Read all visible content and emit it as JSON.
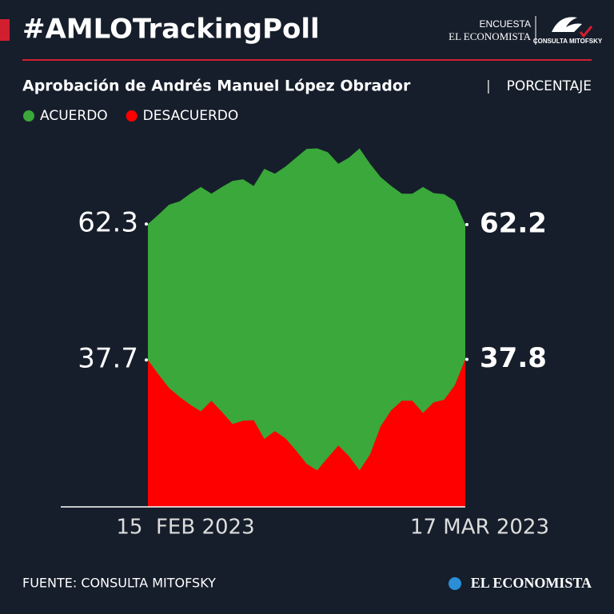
{
  "header": {
    "title": "#AMLOTrackingPoll",
    "brand_top": "ENCUESTA",
    "brand_name": "EL ECONOMISTA",
    "partner": "CONSULTA MITOFSKY"
  },
  "footer": {
    "source": "FUENTE: CONSULTA MITOFSKY",
    "logo": "EL ECONOMISTA"
  },
  "chart_data": {
    "type": "area",
    "title": "Aprobación de Andrés Manuel López Obrador",
    "unit": "PORCENTAJE",
    "categories": [
      "15  FEB 2023",
      null,
      null,
      null,
      null,
      null,
      null,
      null,
      null,
      null,
      null,
      null,
      null,
      null,
      null,
      null,
      null,
      null,
      null,
      null,
      null,
      null,
      null,
      null,
      null,
      null,
      null,
      null,
      null,
      null,
      "17 MAR 2023"
    ],
    "series": [
      {
        "name": "ACUERDO",
        "color": "#3aa83a",
        "values": [
          62.3,
          64.0,
          65.8,
          66.4,
          67.8,
          69.0,
          67.8,
          69.0,
          70.1,
          70.4,
          69.2,
          72.3,
          71.4,
          72.7,
          74.3,
          75.9,
          76.0,
          75.3,
          73.2,
          74.3,
          76.0,
          73.2,
          70.8,
          69.2,
          67.8,
          67.8,
          69.0,
          67.9,
          67.7,
          66.5,
          62.2
        ]
      },
      {
        "name": "DESACUERDO",
        "color": "#ff0000",
        "values": [
          37.7,
          35.1,
          32.6,
          31.0,
          29.6,
          28.4,
          30.3,
          28.3,
          26.1,
          26.7,
          26.8,
          23.4,
          24.8,
          23.5,
          21.3,
          18.9,
          17.7,
          20.0,
          22.2,
          20.3,
          17.7,
          20.6,
          25.7,
          28.6,
          30.3,
          30.3,
          28.1,
          30.0,
          30.5,
          33.1,
          37.8
        ]
      }
    ],
    "ylim": [
      11.1,
      79.7
    ]
  }
}
